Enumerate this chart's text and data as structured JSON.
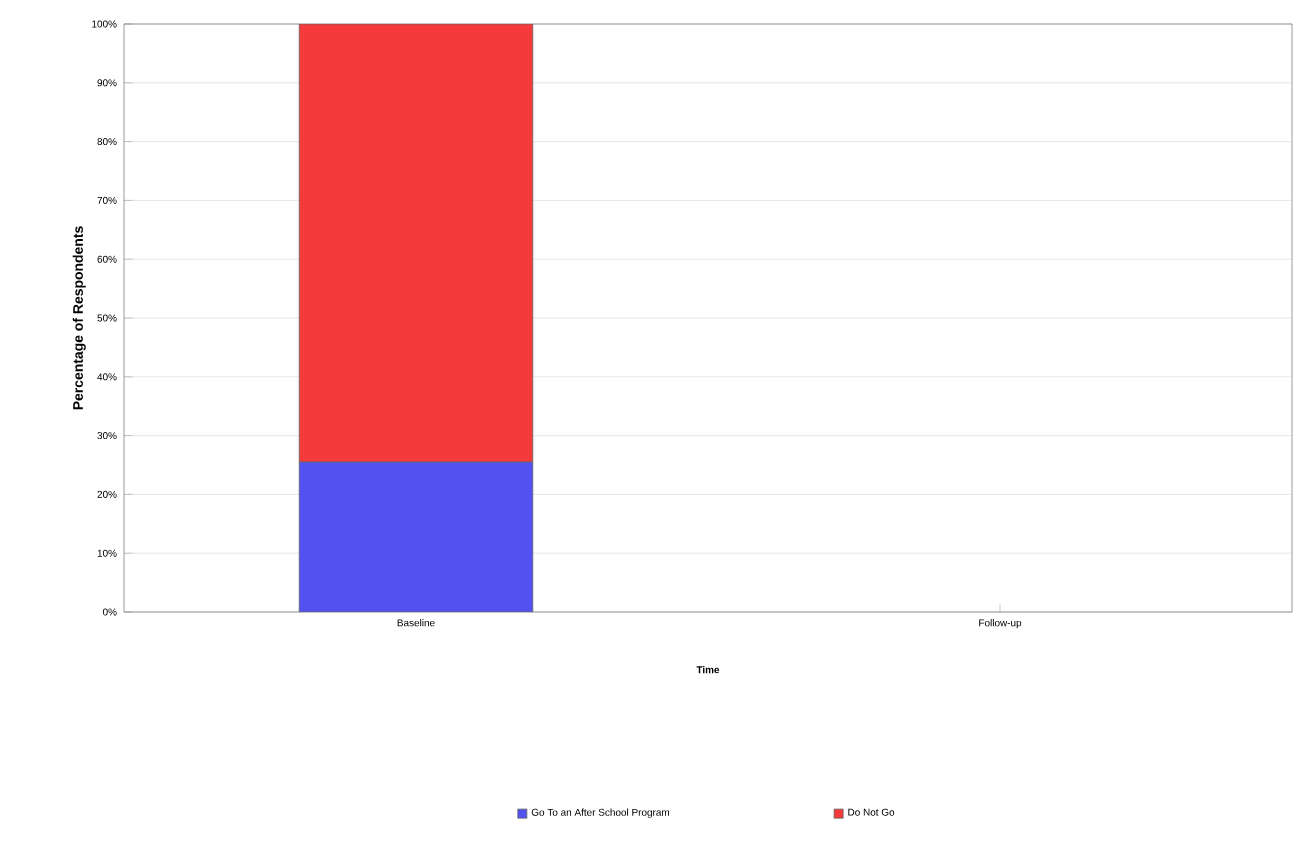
{
  "chart_data": {
    "type": "bar",
    "stacked": true,
    "xlabel": "Time",
    "ylabel": "Percentage of Respondents",
    "categories": [
      "Baseline",
      "Follow-up"
    ],
    "series": [
      {
        "name": "Go To an After School Program",
        "color": "#5252f0",
        "values": [
          25.5,
          null
        ]
      },
      {
        "name": "Do Not Go",
        "color": "#f43a3a",
        "values": [
          74.5,
          null
        ]
      }
    ],
    "ylim": [
      0,
      100
    ],
    "yticks": [
      {
        "value": 0,
        "label": "0%"
      },
      {
        "value": 10,
        "label": "10%"
      },
      {
        "value": 20,
        "label": "20%"
      },
      {
        "value": 30,
        "label": "30%"
      },
      {
        "value": 40,
        "label": "40%"
      },
      {
        "value": 50,
        "label": "50%"
      },
      {
        "value": 60,
        "label": "60%"
      },
      {
        "value": 70,
        "label": "70%"
      },
      {
        "value": 80,
        "label": "80%"
      },
      {
        "value": 90,
        "label": "90%"
      },
      {
        "value": 100,
        "label": "100%"
      }
    ],
    "grid": "y",
    "legend": "bottom"
  }
}
